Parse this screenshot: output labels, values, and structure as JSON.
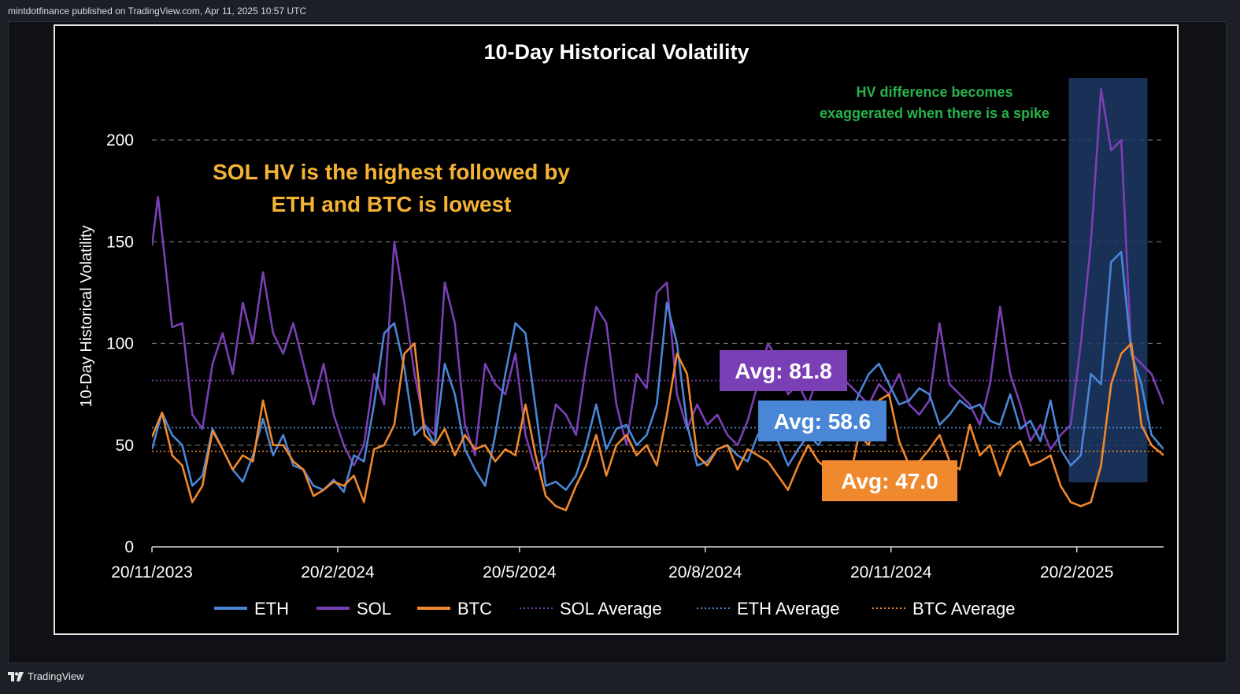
{
  "page": {
    "attribution": "mintdotfinance published on TradingView.com, Apr 11, 2025 10:57 UTC",
    "footer_brand": "TradingView"
  },
  "chart_data": {
    "type": "line",
    "title": "10-Day Historical Volatility",
    "xlabel": "",
    "ylabel": "10-Day Historical Volatility",
    "ylim": [
      0,
      225
    ],
    "yticks": [
      0,
      50,
      100,
      150,
      200
    ],
    "ytick_labels": [
      "0",
      "50",
      "100",
      "150",
      "200"
    ],
    "grid": true,
    "x_range_days": [
      0,
      501
    ],
    "xtick_days": [
      0,
      92,
      182,
      274,
      366,
      458
    ],
    "xtick_labels": [
      "20/11/2023",
      "20/2/2024",
      "20/5/2024",
      "20/8/2024",
      "20/11/2024",
      "20/2/2025"
    ],
    "legend_position": "bottom",
    "colors": {
      "ETH": "#4a86d6",
      "SOL": "#7b3fb5",
      "BTC": "#f0882e",
      "highlight": "#1f3a66"
    },
    "series": [
      {
        "name": "ETH",
        "x_day": [
          0,
          5,
          10,
          15,
          20,
          25,
          30,
          35,
          40,
          45,
          50,
          55,
          60,
          65,
          70,
          75,
          80,
          85,
          90,
          95,
          100,
          105,
          110,
          115,
          120,
          125,
          130,
          135,
          140,
          145,
          150,
          155,
          160,
          165,
          170,
          175,
          180,
          185,
          190,
          195,
          200,
          205,
          210,
          215,
          220,
          225,
          230,
          235,
          240,
          245,
          250,
          255,
          260,
          265,
          270,
          275,
          280,
          285,
          290,
          295,
          300,
          305,
          310,
          315,
          320,
          325,
          330,
          335,
          340,
          345,
          350,
          355,
          360,
          365,
          370,
          375,
          380,
          385,
          390,
          395,
          400,
          405,
          410,
          415,
          420,
          425,
          430,
          435,
          440,
          445,
          450,
          455,
          460,
          465,
          470,
          475,
          480,
          485,
          490,
          495,
          501
        ],
        "values": [
          48,
          66,
          55,
          50,
          30,
          35,
          58,
          48,
          38,
          32,
          45,
          63,
          45,
          55,
          40,
          38,
          30,
          28,
          33,
          27,
          45,
          42,
          70,
          105,
          110,
          88,
          55,
          60,
          50,
          90,
          75,
          48,
          38,
          30,
          55,
          85,
          110,
          105,
          68,
          30,
          32,
          28,
          35,
          50,
          70,
          48,
          58,
          60,
          50,
          55,
          70,
          120,
          100,
          60,
          40,
          42,
          48,
          50,
          45,
          42,
          55,
          60,
          52,
          40,
          48,
          55,
          50,
          58,
          60,
          62,
          75,
          85,
          90,
          80,
          70,
          72,
          78,
          75,
          60,
          65,
          72,
          68,
          70,
          62,
          60,
          75,
          58,
          62,
          52,
          72,
          48,
          40,
          45,
          85,
          80,
          140,
          145,
          95,
          80,
          55,
          48
        ]
      },
      {
        "name": "SOL",
        "x_day": [
          0,
          3,
          6,
          10,
          15,
          20,
          25,
          30,
          35,
          40,
          45,
          50,
          55,
          60,
          65,
          70,
          75,
          80,
          85,
          90,
          95,
          100,
          105,
          110,
          115,
          120,
          125,
          130,
          135,
          140,
          145,
          150,
          155,
          160,
          165,
          170,
          175,
          180,
          185,
          190,
          195,
          200,
          205,
          210,
          215,
          220,
          225,
          230,
          235,
          240,
          245,
          250,
          255,
          260,
          265,
          270,
          275,
          280,
          285,
          290,
          295,
          300,
          305,
          310,
          315,
          320,
          325,
          330,
          335,
          340,
          345,
          350,
          355,
          360,
          365,
          370,
          375,
          380,
          385,
          390,
          395,
          400,
          405,
          410,
          415,
          420,
          425,
          430,
          435,
          440,
          445,
          450,
          455,
          460,
          465,
          470,
          475,
          480,
          485,
          490,
          495,
          501
        ],
        "values": [
          148,
          172,
          145,
          108,
          110,
          65,
          58,
          90,
          105,
          85,
          120,
          100,
          135,
          105,
          95,
          110,
          90,
          70,
          90,
          65,
          50,
          40,
          50,
          85,
          70,
          150,
          120,
          85,
          60,
          55,
          130,
          110,
          60,
          45,
          90,
          80,
          75,
          95,
          55,
          38,
          45,
          70,
          65,
          55,
          90,
          118,
          110,
          70,
          50,
          85,
          78,
          125,
          130,
          75,
          58,
          70,
          60,
          65,
          55,
          50,
          62,
          80,
          100,
          92,
          75,
          80,
          70,
          85,
          90,
          85,
          80,
          75,
          70,
          80,
          75,
          85,
          70,
          65,
          72,
          110,
          80,
          75,
          70,
          60,
          80,
          118,
          85,
          70,
          52,
          60,
          48,
          55,
          60,
          100,
          150,
          225,
          195,
          200,
          95,
          90,
          85,
          70
        ]
      },
      {
        "name": "BTC",
        "x_day": [
          0,
          5,
          10,
          15,
          20,
          25,
          30,
          35,
          40,
          45,
          50,
          55,
          60,
          65,
          70,
          75,
          80,
          85,
          90,
          95,
          100,
          105,
          110,
          115,
          120,
          125,
          130,
          135,
          140,
          145,
          150,
          155,
          160,
          165,
          170,
          175,
          180,
          185,
          190,
          195,
          200,
          205,
          210,
          215,
          220,
          225,
          230,
          235,
          240,
          245,
          250,
          255,
          260,
          265,
          270,
          275,
          280,
          285,
          290,
          295,
          300,
          305,
          310,
          315,
          320,
          325,
          330,
          335,
          340,
          345,
          350,
          355,
          360,
          365,
          370,
          375,
          380,
          385,
          390,
          395,
          400,
          405,
          410,
          415,
          420,
          425,
          430,
          435,
          440,
          445,
          450,
          455,
          460,
          465,
          470,
          475,
          480,
          485,
          490,
          495,
          501
        ],
        "values": [
          54,
          66,
          45,
          40,
          22,
          30,
          57,
          48,
          38,
          45,
          42,
          72,
          50,
          50,
          42,
          38,
          25,
          28,
          32,
          30,
          35,
          22,
          48,
          50,
          60,
          95,
          100,
          55,
          50,
          58,
          45,
          55,
          48,
          50,
          42,
          48,
          45,
          70,
          45,
          25,
          20,
          18,
          30,
          40,
          55,
          35,
          50,
          55,
          45,
          50,
          40,
          65,
          95,
          85,
          45,
          40,
          48,
          50,
          38,
          48,
          45,
          42,
          35,
          28,
          40,
          50,
          42,
          38,
          35,
          30,
          55,
          50,
          72,
          75,
          52,
          40,
          42,
          48,
          55,
          42,
          38,
          60,
          45,
          50,
          35,
          48,
          52,
          40,
          42,
          45,
          30,
          22,
          20,
          22,
          40,
          80,
          95,
          100,
          60,
          50,
          45
        ]
      }
    ],
    "averages": [
      {
        "name": "SOL Average",
        "value": 81.8,
        "label": "Avg: 81.8",
        "color": "#7b3fb5"
      },
      {
        "name": "ETH Average",
        "value": 58.6,
        "label": "Avg: 58.6",
        "color": "#4a86d6"
      },
      {
        "name": "BTC Average",
        "value": 47.0,
        "label": "Avg: 47.0",
        "color": "#f0882e"
      }
    ],
    "highlight_range_days": [
      454,
      493
    ],
    "annotations": {
      "main_line1": "SOL HV is the highest followed by",
      "main_line2": "ETH and BTC is lowest",
      "spike_line1": "HV difference becomes",
      "spike_line2": "exaggerated when there is a spike"
    },
    "legend": [
      "ETH",
      "SOL",
      "BTC",
      "SOL Average",
      "ETH Average",
      "BTC Average"
    ]
  }
}
